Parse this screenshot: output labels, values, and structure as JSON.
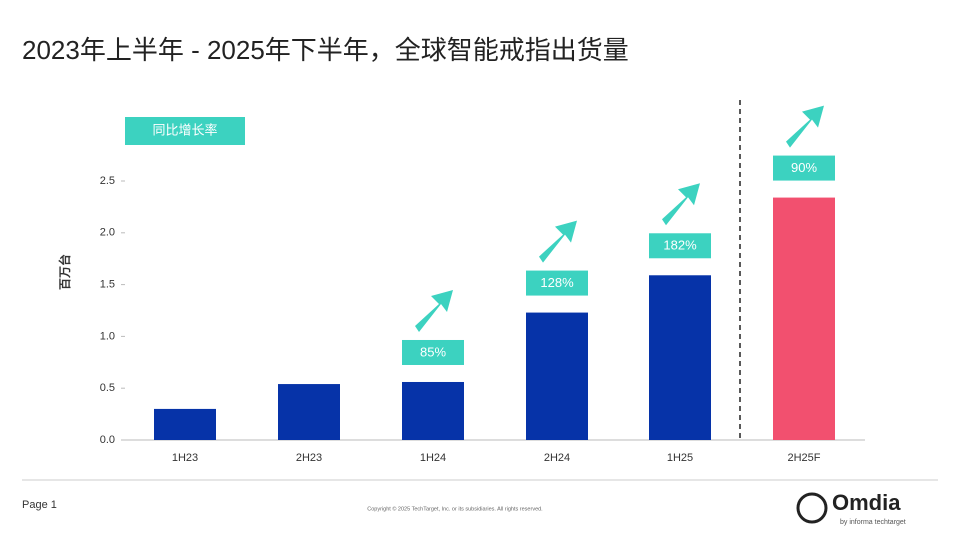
{
  "chart_data": {
    "type": "bar",
    "title": "2023年上半年 - 2025年下半年，全球智能戒指出货量",
    "y_label": "百万台",
    "categories": [
      "1H23",
      "2H23",
      "1H24",
      "2H24",
      "1H25",
      "2H25F"
    ],
    "values": [
      0.3,
      0.54,
      0.56,
      1.23,
      1.59,
      2.34
    ],
    "colors": [
      "#0633a8",
      "#0633a8",
      "#0633a8",
      "#0633a8",
      "#0633a8",
      "#f2506f"
    ],
    "growth": {
      "name": "同比增长率",
      "color": "#3cd2c0",
      "values": [
        null,
        null,
        85,
        128,
        182,
        90
      ],
      "value_labels": [
        null,
        null,
        "85%",
        "128%",
        "182%",
        "90%"
      ]
    },
    "ylim": [
      0,
      2.5
    ],
    "yticks": [
      {
        "value": 0,
        "label": "0.0"
      },
      0.5,
      {
        "value": 1,
        "label": "1.0"
      },
      1.5,
      {
        "value": 2,
        "label": "2.0"
      },
      2.5
    ],
    "grid": false
  },
  "footer": {
    "page": "Page 1",
    "copyright": "Copyright © 2025 TechTarget, Inc. or its subsidiaries. All rights reserved.",
    "brand": "Omdia",
    "brand_sub": "by informa techtarget"
  }
}
